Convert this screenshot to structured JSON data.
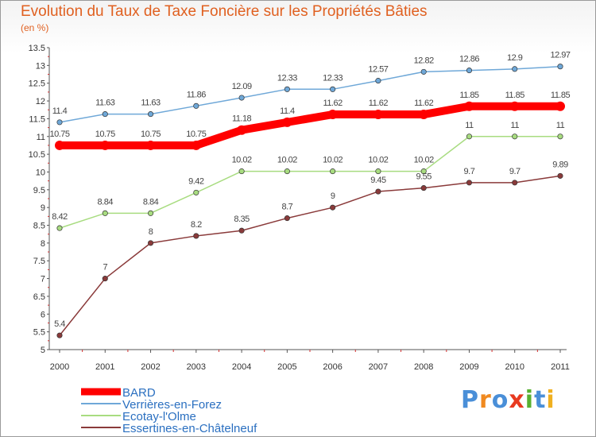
{
  "header": {
    "title": "Evolution du Taux de Taxe Foncière sur les Propriétés Bâties",
    "unit": "(en %)"
  },
  "logo": {
    "text": "Proxiti",
    "colors": [
      "#4a8fd8",
      "#f08a20",
      "#4a8fd8",
      "#e83a20",
      "#58b030",
      "#4a8fd8",
      "#f0b020"
    ]
  },
  "chart_data": {
    "type": "line",
    "title": "Evolution du Taux de Taxe Foncière sur les Propriétés Bâties",
    "ylabel": "(en %)",
    "xlabel": "",
    "ylim": [
      5,
      13.5
    ],
    "yticks": [
      "5",
      "5.5",
      "6",
      "6.5",
      "7",
      "7.5",
      "8",
      "8.5",
      "9",
      "9.5",
      "10",
      "10.5",
      "11",
      "11.5",
      "12",
      "12.5",
      "13",
      "13.5"
    ],
    "categories": [
      "2000",
      "2001",
      "2002",
      "2003",
      "2004",
      "2005",
      "2006",
      "2007",
      "2008",
      "2009",
      "2010",
      "2011"
    ],
    "grid": false,
    "legend_position": "bottom-left",
    "series": [
      {
        "name": "BARD",
        "color": "#ff0000",
        "values": [
          10.75,
          10.75,
          10.75,
          10.75,
          11.18,
          11.4,
          11.62,
          11.62,
          11.62,
          11.85,
          11.85,
          11.85
        ],
        "labels": [
          "10.75",
          "10.75",
          "10.75",
          "10.75",
          "11.18",
          "11.4",
          "11.62",
          "11.62",
          "11.62",
          "11.85",
          "11.85",
          "11.85"
        ]
      },
      {
        "name": "Verrières-en-Forez",
        "color": "#6fa8d8",
        "values": [
          11.4,
          11.63,
          11.63,
          11.86,
          12.09,
          12.33,
          12.33,
          12.57,
          12.82,
          12.86,
          12.9,
          12.97
        ],
        "labels": [
          "11.4",
          "11.63",
          "11.63",
          "11.86",
          "12.09",
          "12.33",
          "12.33",
          "12.57",
          "12.82",
          "12.86",
          "12.9",
          "12.97"
        ]
      },
      {
        "name": "Ecotay-l'Olme",
        "color": "#a8dc80",
        "values": [
          8.42,
          8.84,
          8.84,
          9.42,
          10.02,
          10.02,
          10.02,
          10.02,
          10.02,
          11,
          11,
          11
        ],
        "labels": [
          "8.42",
          "8.84",
          "8.84",
          "9.42",
          "10.02",
          "10.02",
          "10.02",
          "10.02",
          "10.02",
          "11",
          "11",
          "11"
        ]
      },
      {
        "name": "Essertines-en-Châtelneuf",
        "color": "#8a3a3a",
        "values": [
          5.4,
          7,
          8,
          8.2,
          8.35,
          8.7,
          9,
          9.45,
          9.55,
          9.7,
          9.7,
          9.89
        ],
        "labels": [
          "5.4",
          "7",
          "8",
          "8.2",
          "8.35",
          "8.7",
          "9",
          "9.45",
          "9.55",
          "9.7",
          "9.7",
          "9.89"
        ]
      }
    ]
  }
}
